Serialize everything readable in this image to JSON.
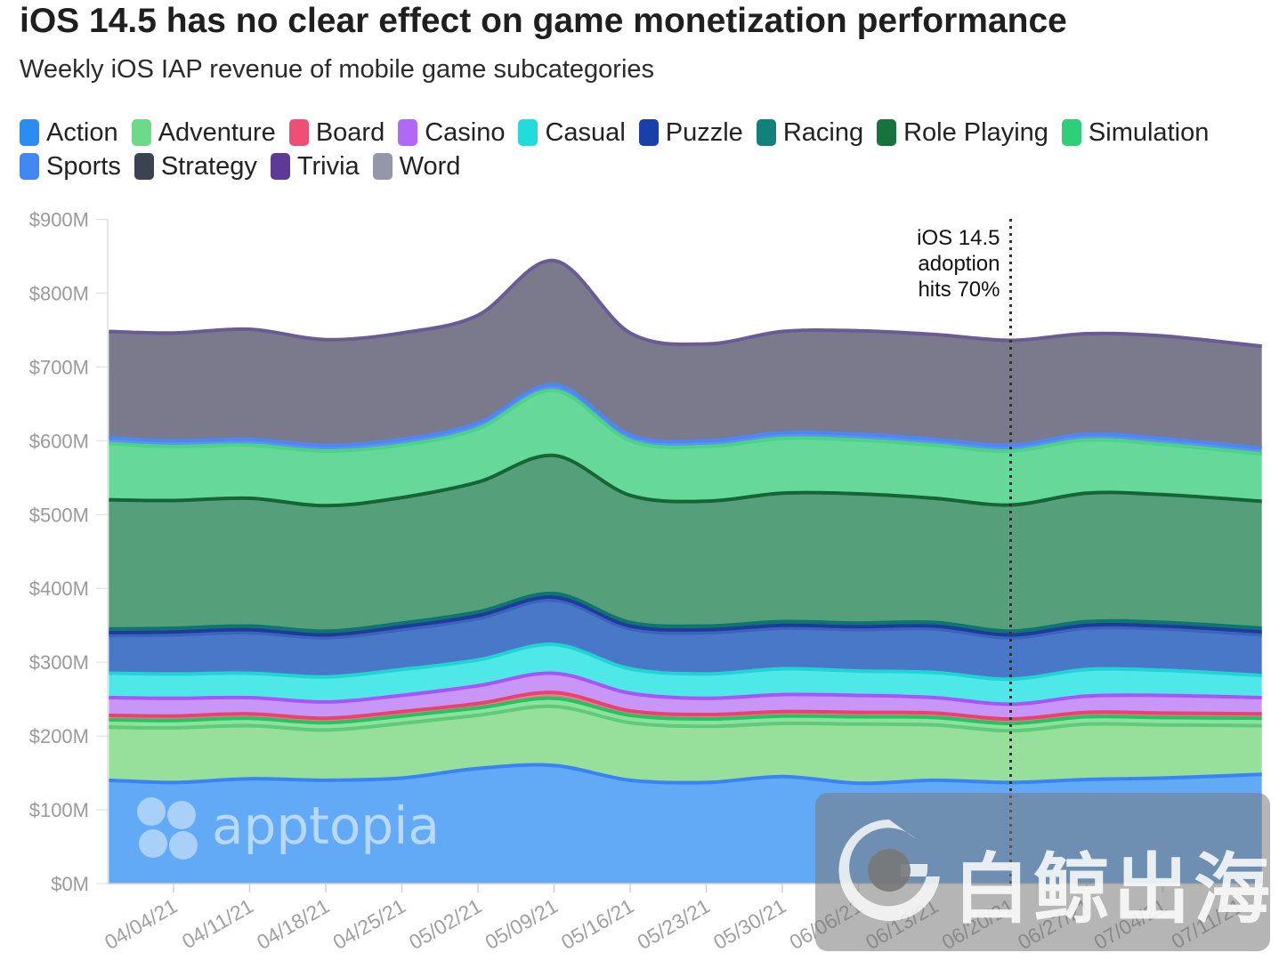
{
  "title": "iOS 14.5 has no clear effect on game monetization performance",
  "subtitle": "Weekly iOS IAP revenue of mobile game subcategories",
  "annotation": {
    "lines": [
      "iOS 14.5",
      "adoption",
      "hits 70%"
    ],
    "x_category": "06/20/21"
  },
  "watermarks": {
    "apptopia": "apptopia",
    "baijing": "白鲸出海"
  },
  "chart_data": {
    "type": "area",
    "stacked": true,
    "title": "Weekly iOS IAP revenue of mobile game subcategories",
    "ylim": [
      0,
      900
    ],
    "y_unit": "$M",
    "y_ticks": [
      {
        "value": 0,
        "label": "$0M"
      },
      {
        "value": 100,
        "label": "$100M"
      },
      {
        "value": 200,
        "label": "$200M"
      },
      {
        "value": 300,
        "label": "$300M"
      },
      {
        "value": 400,
        "label": "$400M"
      },
      {
        "value": 500,
        "label": "$500M"
      },
      {
        "value": 600,
        "label": "$600M"
      },
      {
        "value": 700,
        "label": "$700M"
      },
      {
        "value": 800,
        "label": "$800M"
      },
      {
        "value": 900,
        "label": "$900M"
      }
    ],
    "x_ticks": [
      "04/04/21",
      "04/11/21",
      "04/18/21",
      "04/25/21",
      "05/02/21",
      "05/09/21",
      "05/16/21",
      "05/23/21",
      "05/30/21",
      "06/06/21",
      "06/13/21",
      "06/20/21",
      "06/27/21",
      "07/04/21",
      "07/11/21"
    ],
    "point_positions": [
      -0.85,
      0,
      1,
      2,
      3,
      4,
      5,
      6,
      7,
      8,
      9,
      10,
      11,
      12,
      13,
      14.3
    ],
    "series": [
      {
        "name": "Sports",
        "color": "#3b82f6",
        "fill": "#62aaf5",
        "values": [
          140,
          137,
          142,
          140,
          143,
          156,
          160,
          140,
          137,
          145,
          136,
          140,
          137,
          141,
          143,
          148
        ]
      },
      {
        "name": "Adventure",
        "color": "#5ecb76",
        "fill": "#96e09c",
        "values": [
          72,
          74,
          72,
          68,
          74,
          72,
          80,
          78,
          76,
          72,
          80,
          75,
          70,
          75,
          72,
          66
        ]
      },
      {
        "name": "Simulation",
        "color": "#22c55e",
        "fill": "#8fe0a0",
        "values": [
          10,
          10,
          10,
          10,
          10,
          10,
          11,
          10,
          10,
          10,
          10,
          10,
          10,
          10,
          10,
          10
        ]
      },
      {
        "name": "Board",
        "color": "#e8436b",
        "fill": "#f07a94",
        "values": [
          6,
          6,
          6,
          6,
          6,
          6,
          8,
          6,
          6,
          6,
          6,
          6,
          6,
          6,
          6,
          6
        ]
      },
      {
        "name": "Casino",
        "color": "#a855f7",
        "fill": "#c896f7",
        "values": [
          24,
          24,
          22,
          22,
          22,
          24,
          26,
          24,
          22,
          23,
          23,
          21,
          20,
          22,
          24,
          22
        ]
      },
      {
        "name": "Casual",
        "color": "#22d3d3",
        "fill": "#4ee8e8",
        "values": [
          33,
          33,
          33,
          34,
          35,
          35,
          39,
          33,
          33,
          35,
          33,
          34,
          34,
          36,
          34,
          30
        ]
      },
      {
        "name": "Strategy",
        "color": "#3c64ba",
        "fill": "#4a78c8",
        "values": [
          51,
          53,
          55,
          53,
          54,
          56,
          60,
          54,
          56,
          55,
          56,
          59,
          56,
          56,
          56,
          55
        ]
      },
      {
        "name": "Puzzle",
        "color": "#1e3a9e",
        "fill": "#1e3a9e",
        "values": [
          4,
          4,
          4,
          4,
          4,
          4,
          4,
          4,
          4,
          4,
          4,
          4,
          4,
          4,
          4,
          4
        ]
      },
      {
        "name": "Racing",
        "color": "#0f766e",
        "fill": "#14877e",
        "values": [
          5,
          5,
          5,
          5,
          5,
          5,
          5,
          5,
          5,
          5,
          5,
          5,
          5,
          5,
          5,
          5
        ]
      },
      {
        "name": "Role Playing",
        "color": "#166534",
        "fill": "#55a07a",
        "values": [
          175,
          173,
          173,
          170,
          170,
          176,
          187,
          172,
          169,
          174,
          175,
          168,
          171,
          174,
          173,
          172
        ]
      },
      {
        "name": "Action",
        "color": "#4cd484",
        "fill": "#66d99a",
        "values": [
          76,
          73,
          72,
          74,
          71,
          72,
          88,
          74,
          74,
          74,
          73,
          72,
          73,
          72,
          68,
          64
        ]
      },
      {
        "name": "Trivia",
        "color": "#4f86f0",
        "fill": "#5a93f2",
        "values": [
          8,
          8,
          8,
          8,
          8,
          8,
          8,
          8,
          8,
          8,
          8,
          8,
          8,
          8,
          8,
          8
        ]
      },
      {
        "name": "Word",
        "color": "#6b5b95",
        "fill": "#7a7a8c",
        "values": [
          144,
          146,
          149,
          143,
          144,
          146,
          168,
          138,
          131,
          137,
          140,
          142,
          142,
          136,
          139,
          138
        ]
      }
    ],
    "legend": [
      {
        "name": "Action",
        "color": "#2c8cf0"
      },
      {
        "name": "Adventure",
        "color": "#6fd98a"
      },
      {
        "name": "Board",
        "color": "#ee4f74"
      },
      {
        "name": "Casino",
        "color": "#b068f5"
      },
      {
        "name": "Casual",
        "color": "#22dcdc"
      },
      {
        "name": "Puzzle",
        "color": "#1a3fa8"
      },
      {
        "name": "Racing",
        "color": "#14807a"
      },
      {
        "name": "Role Playing",
        "color": "#17733d"
      },
      {
        "name": "Simulation",
        "color": "#2fcf7a"
      },
      {
        "name": "Sports",
        "color": "#4388f2"
      },
      {
        "name": "Strategy",
        "color": "#3b4350"
      },
      {
        "name": "Trivia",
        "color": "#5e3a96"
      },
      {
        "name": "Word",
        "color": "#9497a8"
      }
    ]
  }
}
